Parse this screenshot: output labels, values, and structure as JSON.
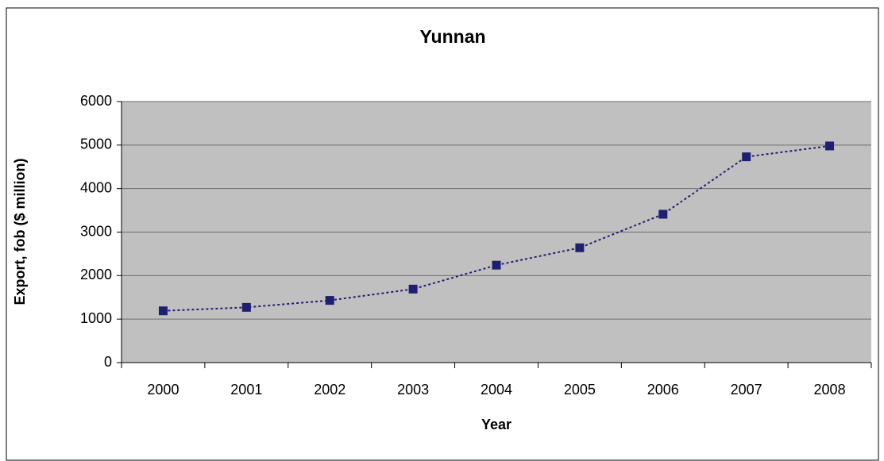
{
  "chart_data": {
    "type": "line",
    "title": "Yunnan",
    "x_label": "Year",
    "y_label": "Export, fob ($ million)",
    "categories": [
      "2000",
      "2001",
      "2002",
      "2003",
      "2004",
      "2005",
      "2006",
      "2007",
      "2008"
    ],
    "series": [
      {
        "name": "Yunnan",
        "color": "#1f1f72",
        "values": [
          1190,
          1270,
          1430,
          1690,
          2240,
          2640,
          3410,
          4730,
          4980
        ]
      }
    ],
    "ylim": [
      0,
      6000
    ],
    "yticks": [
      0,
      1000,
      2000,
      3000,
      4000,
      5000,
      6000
    ],
    "grid": true
  }
}
